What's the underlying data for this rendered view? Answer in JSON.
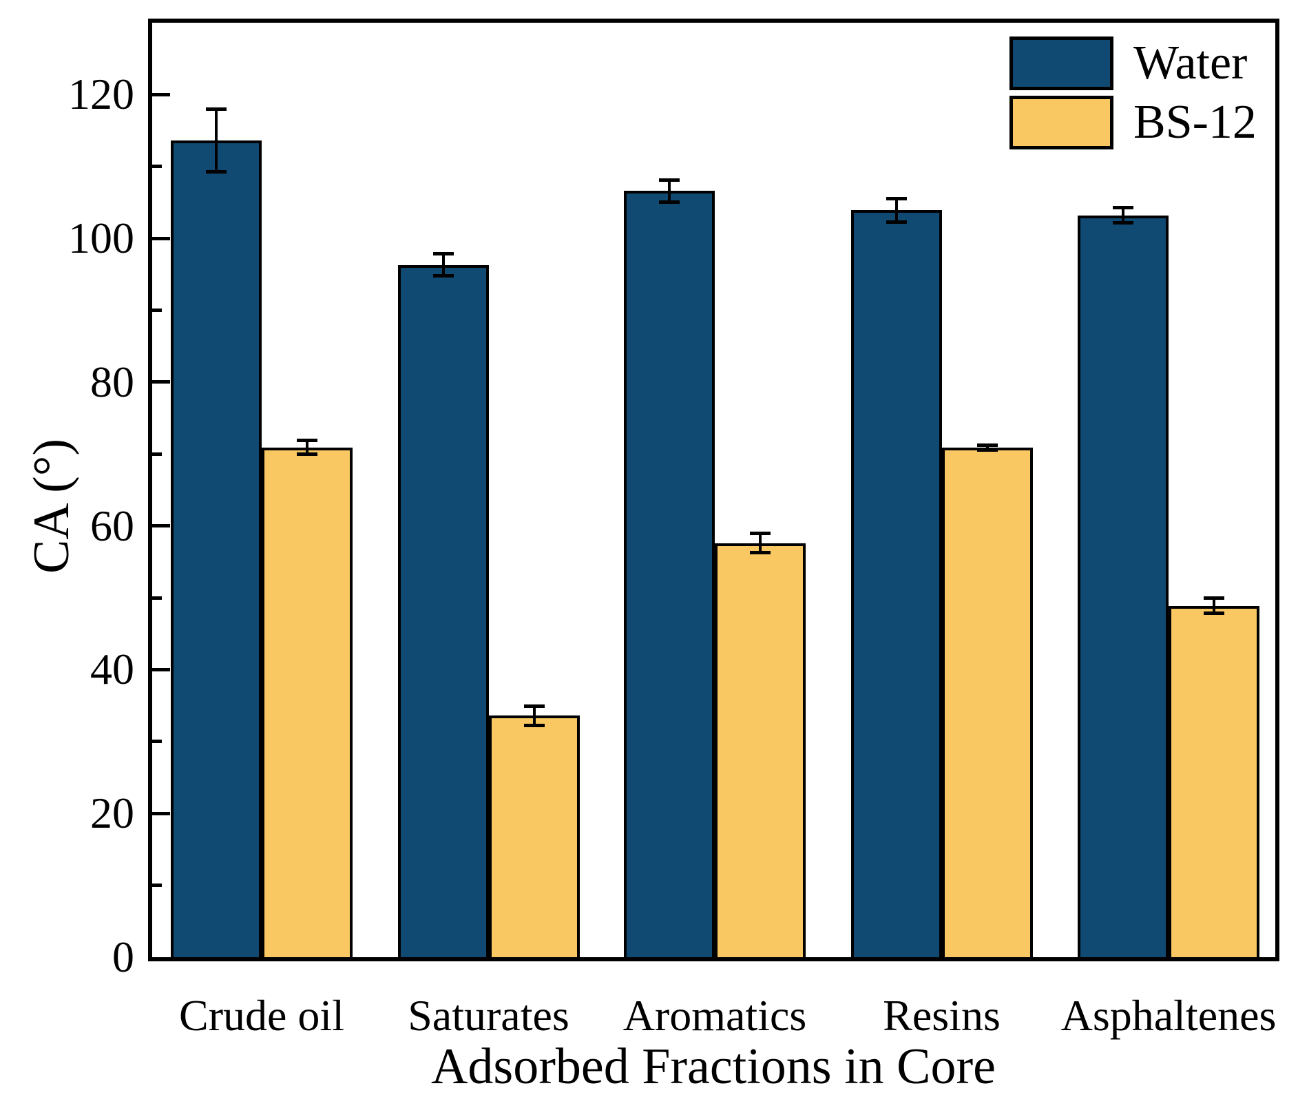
{
  "chart_data": {
    "type": "bar",
    "title": "",
    "xlabel": "Adsorbed Fractions in Core",
    "ylabel": "CA (°)",
    "categories": [
      "Crude oil",
      "Saturates",
      "Aromatics",
      "Resins",
      "Asphaltenes"
    ],
    "series": [
      {
        "name": "Water",
        "color": "#104a73",
        "values": [
          113.6,
          96.3,
          106.6,
          103.9,
          103.2
        ],
        "errors": [
          4.4,
          1.6,
          1.6,
          1.7,
          1.1
        ]
      },
      {
        "name": "BS-12",
        "color": "#fac862",
        "values": [
          70.9,
          33.6,
          57.6,
          70.9,
          48.9
        ],
        "errors": [
          1.0,
          1.4,
          1.4,
          0.4,
          1.1
        ]
      }
    ],
    "ylim": [
      0,
      130
    ],
    "yticks": [
      0,
      20,
      40,
      60,
      80,
      100,
      120
    ],
    "minor_tick_step": 10,
    "grid": false,
    "legend_position": "top-right",
    "bar_outline_color": "#000000",
    "error_bar_color": "#000000"
  }
}
